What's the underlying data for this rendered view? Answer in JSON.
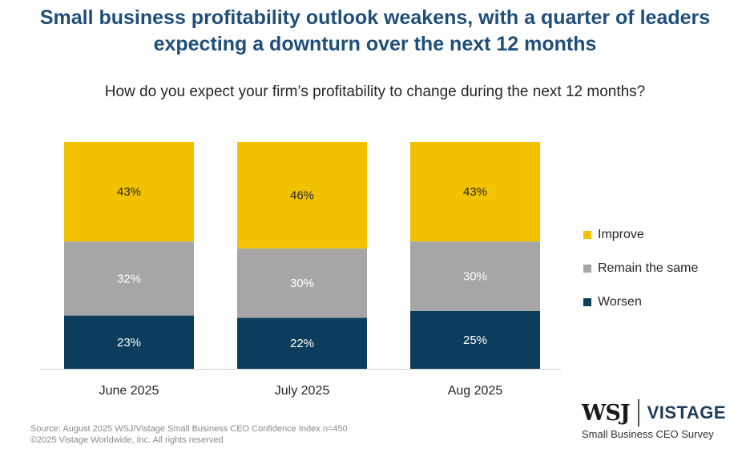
{
  "chart_data": {
    "type": "bar",
    "stacked": true,
    "title": "Small business profitability outlook weakens, with a quarter of leaders expecting a downturn over the next 12 months",
    "subtitle": "How do you expect your firm’s profitability to change during the next 12 months?",
    "categories": [
      "June 2025",
      "July 2025",
      "Aug 2025"
    ],
    "series": [
      {
        "name": "Worsen",
        "values": [
          23,
          22,
          25
        ],
        "color": "#0d3d5c",
        "label_color": "#ffffff"
      },
      {
        "name": "Remain the same",
        "values": [
          32,
          30,
          30
        ],
        "color": "#a6a6a6",
        "label_color": "#ffffff"
      },
      {
        "name": "Improve",
        "values": [
          43,
          46,
          43
        ],
        "color": "#f2c200",
        "label_color": "#262626"
      }
    ],
    "value_suffix": "%",
    "legend_position": "right",
    "legend_order": [
      "Improve",
      "Remain the same",
      "Worsen"
    ],
    "grid": false
  },
  "footer": {
    "source_line1": "Source: August 2025 WSJ/Vistage Small Business CEO Confidence Index n=450",
    "source_line2": "©2025 Vistage Worldwide, Inc. All rights reserved"
  },
  "logo": {
    "wsj": "WSJ",
    "vistage": "VISTAGE",
    "sub": "Small Business CEO Survey"
  }
}
